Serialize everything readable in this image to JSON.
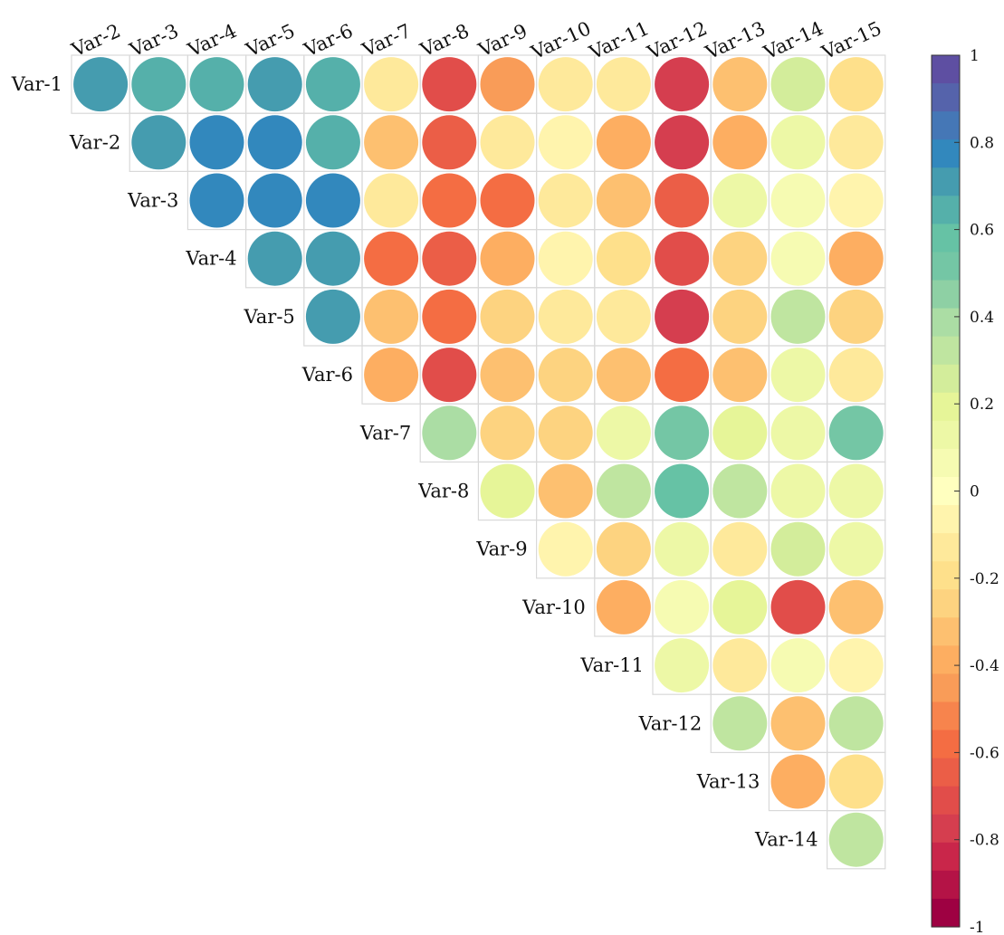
{
  "chart_data": {
    "type": "heatmap",
    "style": "upper-triangular correlation matrix with circle markers",
    "row_labels": [
      "Var-1",
      "Var-2",
      "Var-3",
      "Var-4",
      "Var-5",
      "Var-6",
      "Var-7",
      "Var-8",
      "Var-9",
      "Var-10",
      "Var-11",
      "Var-12",
      "Var-13",
      "Var-14"
    ],
    "column_labels": [
      "Var-2",
      "Var-3",
      "Var-4",
      "Var-5",
      "Var-6",
      "Var-7",
      "Var-8",
      "Var-9",
      "Var-10",
      "Var-11",
      "Var-12",
      "Var-13",
      "Var-14",
      "Var-15"
    ],
    "values": [
      [
        0.7,
        0.65,
        0.65,
        0.7,
        0.65,
        -0.15,
        -0.7,
        -0.45,
        -0.1,
        -0.15,
        -0.75,
        -0.35,
        0.25,
        -0.2
      ],
      [
        null,
        0.7,
        0.8,
        0.8,
        0.65,
        -0.35,
        -0.65,
        -0.15,
        -0.05,
        -0.4,
        -0.8,
        -0.4,
        0.15,
        -0.1
      ],
      [
        null,
        null,
        0.8,
        0.8,
        0.8,
        -0.15,
        -0.6,
        -0.55,
        -0.1,
        -0.35,
        -0.65,
        0.1,
        0.05,
        -0.05
      ],
      [
        null,
        null,
        null,
        0.7,
        0.7,
        -0.6,
        -0.65,
        -0.4,
        -0.05,
        -0.2,
        -0.7,
        -0.25,
        0.05,
        -0.4
      ],
      [
        null,
        null,
        null,
        null,
        0.7,
        -0.3,
        -0.6,
        -0.25,
        -0.15,
        -0.1,
        -0.8,
        -0.25,
        0.3,
        -0.25
      ],
      [
        null,
        null,
        null,
        null,
        null,
        -0.4,
        -0.7,
        -0.3,
        -0.25,
        -0.3,
        -0.6,
        -0.35,
        0.1,
        -0.1
      ],
      [
        null,
        null,
        null,
        null,
        null,
        null,
        0.4,
        -0.25,
        -0.25,
        0.15,
        0.5,
        0.2,
        0.1,
        0.5
      ],
      [
        null,
        null,
        null,
        null,
        null,
        null,
        null,
        0.2,
        -0.3,
        0.3,
        0.6,
        0.35,
        0.1,
        0.15
      ],
      [
        null,
        null,
        null,
        null,
        null,
        null,
        null,
        null,
        -0.05,
        -0.25,
        0.15,
        -0.1,
        0.25,
        0.15
      ],
      [
        null,
        null,
        null,
        null,
        null,
        null,
        null,
        null,
        null,
        -0.4,
        0.05,
        0.2,
        -0.7,
        -0.35
      ],
      [
        null,
        null,
        null,
        null,
        null,
        null,
        null,
        null,
        null,
        null,
        0.1,
        -0.15,
        0.05,
        -0.05
      ],
      [
        null,
        null,
        null,
        null,
        null,
        null,
        null,
        null,
        null,
        null,
        null,
        0.3,
        -0.35,
        0.3
      ],
      [
        null,
        null,
        null,
        null,
        null,
        null,
        null,
        null,
        null,
        null,
        null,
        null,
        -0.4,
        -0.2
      ],
      [
        null,
        null,
        null,
        null,
        null,
        null,
        null,
        null,
        null,
        null,
        null,
        null,
        null,
        0.3
      ]
    ],
    "colorbar": {
      "range": [
        -1,
        1
      ],
      "ticks": [
        "1",
        "0.8",
        "0.6",
        "0.4",
        "0.2",
        "0",
        "-0.2",
        "-0.4",
        "-0.6",
        "-0.8",
        "-1"
      ],
      "colors_low_to_high": [
        "#9e0142",
        "#b41346",
        "#c9264a",
        "#d53e4f",
        "#e14d4a",
        "#eb5e47",
        "#f46d43",
        "#f7844d",
        "#f99c58",
        "#fdae61",
        "#fdc070",
        "#fdd380",
        "#fee08b",
        "#fee99b",
        "#fff4ad",
        "#ffffbf",
        "#f6fbb2",
        "#edf8a6",
        "#e6f598",
        "#d3ed9b",
        "#bfe5a0",
        "#abdda4",
        "#8ed0a4",
        "#74c6a5",
        "#66c2a5",
        "#55b0aa",
        "#459caf",
        "#3288bd",
        "#4577b6",
        "#5563ab",
        "#5e4fa2"
      ]
    }
  }
}
